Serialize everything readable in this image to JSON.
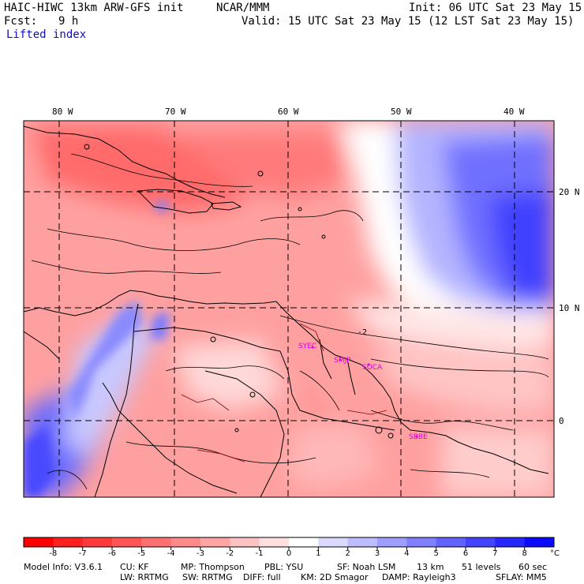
{
  "header": {
    "model": "HAIC-HIWC 13km ARW-GFS init",
    "org": "NCAR/MMM",
    "init": "Init: 06 UTC Sat 23 May 15",
    "fcst_label": "Fcst:",
    "fcst_value": "9 h",
    "valid": "Valid: 15 UTC Sat 23 May 15 (12 LST Sat 23 May 15)",
    "field": "Lifted index"
  },
  "map": {
    "lon_labels": [
      "80 W",
      "70 W",
      "60 W",
      "50 W",
      "40 W"
    ],
    "lat_labels": [
      "20 N",
      "10 N",
      "0"
    ],
    "stations": [
      "SYEC",
      "SMJP",
      "SOCA",
      "SBBE"
    ],
    "station_color": "#e000e0",
    "contour_value_labels": [
      "-2"
    ]
  },
  "colorbar": {
    "ticks": [
      "-8",
      "-7",
      "-6",
      "-5",
      "-4",
      "-3",
      "-2",
      "-1",
      "0",
      "1",
      "2",
      "3",
      "4",
      "5",
      "6",
      "7",
      "8"
    ],
    "unit": "°C",
    "colors": [
      "#ff0000",
      "#ff2020",
      "#ff3a3a",
      "#ff5555",
      "#ff7070",
      "#ff8a8a",
      "#ffa5a5",
      "#ffc2c2",
      "#ffe0e0",
      "#ffffff",
      "#dadaff",
      "#bcbcff",
      "#9e9eff",
      "#8080ff",
      "#6262ff",
      "#4444ff",
      "#2626ff",
      "#0a0aff"
    ]
  },
  "footer": {
    "line1": [
      "Model Info: V3.6.1",
      "CU: KF",
      "MP: Thompson",
      "PBL: YSU",
      "SF: Noah LSM",
      "13 km",
      "51 levels",
      "60 sec"
    ],
    "line2": [
      "LW: RRTMG",
      "SW: RRTMG",
      "DIFF: full",
      "KM: 2D Smagor",
      "DAMP: Rayleigh3",
      "SFLAY: MM5"
    ]
  }
}
